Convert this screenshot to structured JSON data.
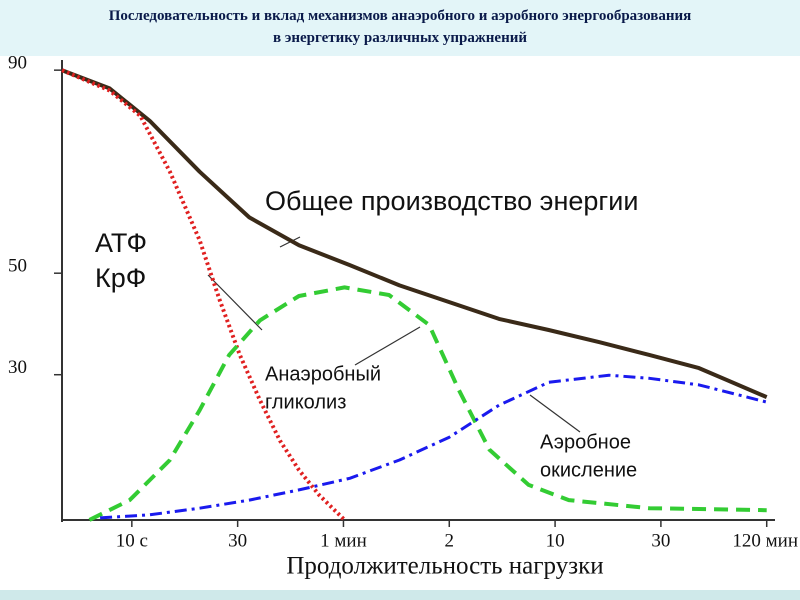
{
  "chart_data": {
    "type": "line",
    "title": "Последовательность и вклад механизмов анаэробного и аэробного энергообразования",
    "subtitle": "в энергетику различных упражнений",
    "x_label": "Продолжительность нагрузки",
    "xlim": [
      0.34,
      7.05
    ],
    "ylim": [
      0,
      92
    ],
    "xticks": [
      {
        "value": 1,
        "label": "10 с"
      },
      {
        "value": 2,
        "label": "30"
      },
      {
        "value": 3,
        "label": "1 мин"
      },
      {
        "value": 4,
        "label": "2"
      },
      {
        "value": 5,
        "label": "10"
      },
      {
        "value": 6,
        "label": "30"
      },
      {
        "value": 7,
        "label": "120 мин"
      }
    ],
    "yticks": [
      90,
      50,
      30
    ],
    "series": [
      {
        "label": [
          "Общее производство энергии"
        ],
        "color": "#3a2a18",
        "style": "solid",
        "x": [
          0.34,
          0.79,
          1.17,
          1.64,
          2.11,
          2.58,
          3.06,
          3.53,
          4.0,
          4.47,
          4.94,
          5.42,
          5.89,
          6.36,
          7.0
        ],
        "values": [
          90,
          86.4,
          80,
          70,
          61,
          55.5,
          51.6,
          47.6,
          44.3,
          41,
          38.8,
          36.4,
          33.9,
          31.3,
          25.6
        ]
      },
      {
        "label": [
          "АТФ",
          "КрФ"
        ],
        "color": "#e02020",
        "style": "dotted",
        "x": [
          0.34,
          0.79,
          1.08,
          1.36,
          1.64,
          1.83,
          2.02,
          2.21,
          2.4,
          2.58,
          2.77,
          3.01
        ],
        "values": [
          90,
          86,
          81,
          70,
          56.5,
          44.7,
          33.9,
          25,
          17,
          11.2,
          6.3,
          1.4
        ]
      },
      {
        "label": [
          "Анаэробный",
          "гликолиз"
        ],
        "color": "#33cc33",
        "style": "dashed",
        "x": [
          0.6,
          0.98,
          1.36,
          1.64,
          1.92,
          2.21,
          2.58,
          3.01,
          3.43,
          3.81,
          4.09,
          4.38,
          4.75,
          5.13,
          5.89,
          7.0
        ],
        "values": [
          1.4,
          5.3,
          13.2,
          23,
          33.9,
          40.7,
          45.5,
          47.2,
          45.7,
          39.8,
          27,
          15.2,
          8.3,
          5.3,
          3.7,
          3.3
        ]
      },
      {
        "label": [
          "Аэробное",
          "окисление"
        ],
        "color": "#1a1aee",
        "style": "dashdot",
        "x": [
          0.7,
          1.17,
          1.64,
          2.11,
          2.58,
          3.06,
          3.53,
          4.0,
          4.47,
          4.94,
          5.51,
          5.89,
          6.36,
          7.0
        ],
        "values": [
          1.8,
          2.4,
          3.7,
          5.3,
          7.3,
          9.6,
          13.2,
          17.7,
          24,
          28.5,
          29.9,
          29.3,
          28,
          24.6
        ]
      }
    ]
  }
}
